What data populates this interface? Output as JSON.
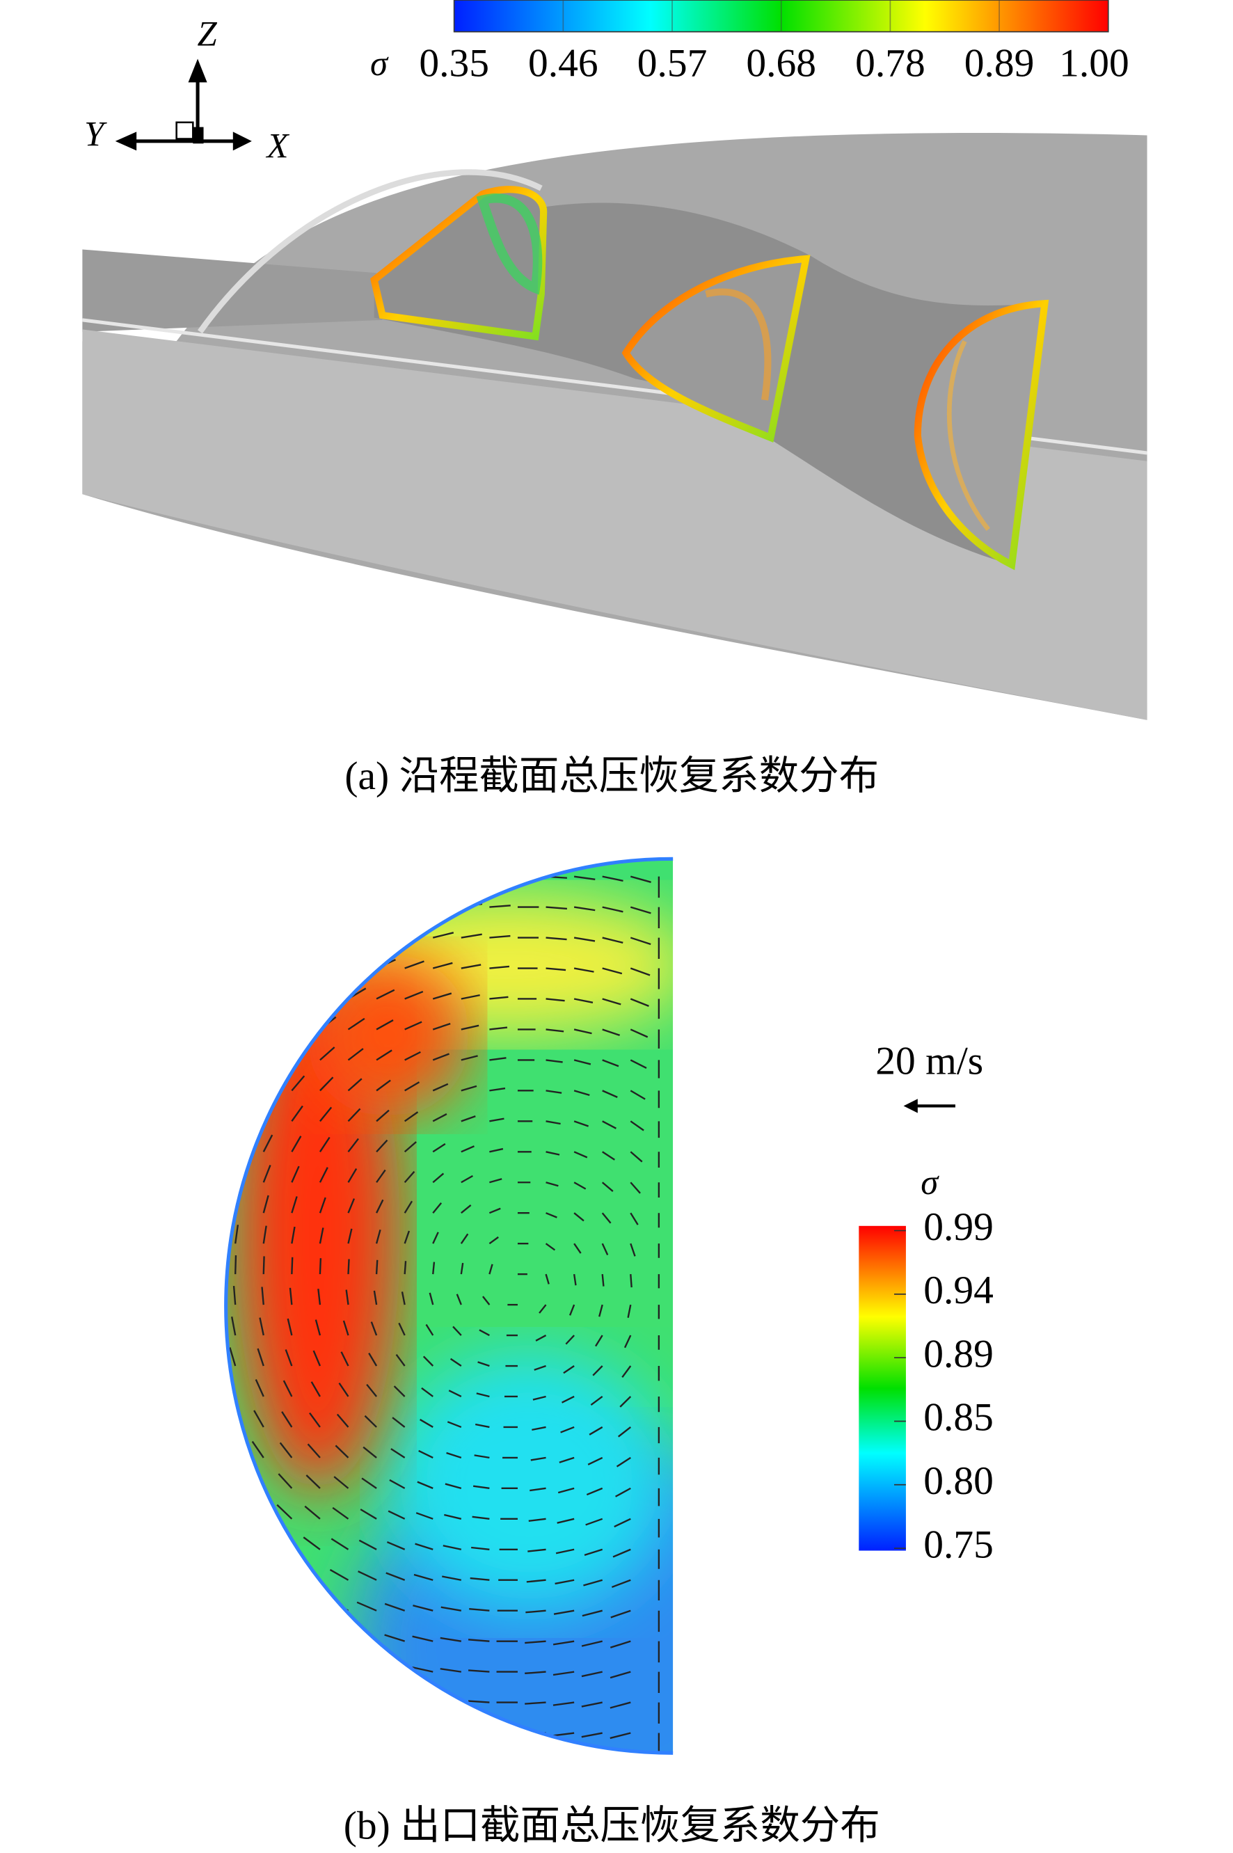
{
  "panel_a": {
    "axes": {
      "z": "Z",
      "y": "Y",
      "x": "X"
    },
    "colorbar": {
      "symbol": "σ",
      "ticks": [
        "0.35",
        "0.46",
        "0.57",
        "0.68",
        "0.78",
        "0.89",
        "1.00"
      ]
    },
    "caption": "(a) 沿程截面总压恢复系数分布"
  },
  "panel_b": {
    "vector_scale": "20 m/s",
    "colorbar": {
      "symbol": "σ",
      "ticks": [
        "0.99",
        "0.94",
        "0.89",
        "0.85",
        "0.80",
        "0.75"
      ]
    },
    "caption": "(b) 出口截面总压恢复系数分布"
  }
}
